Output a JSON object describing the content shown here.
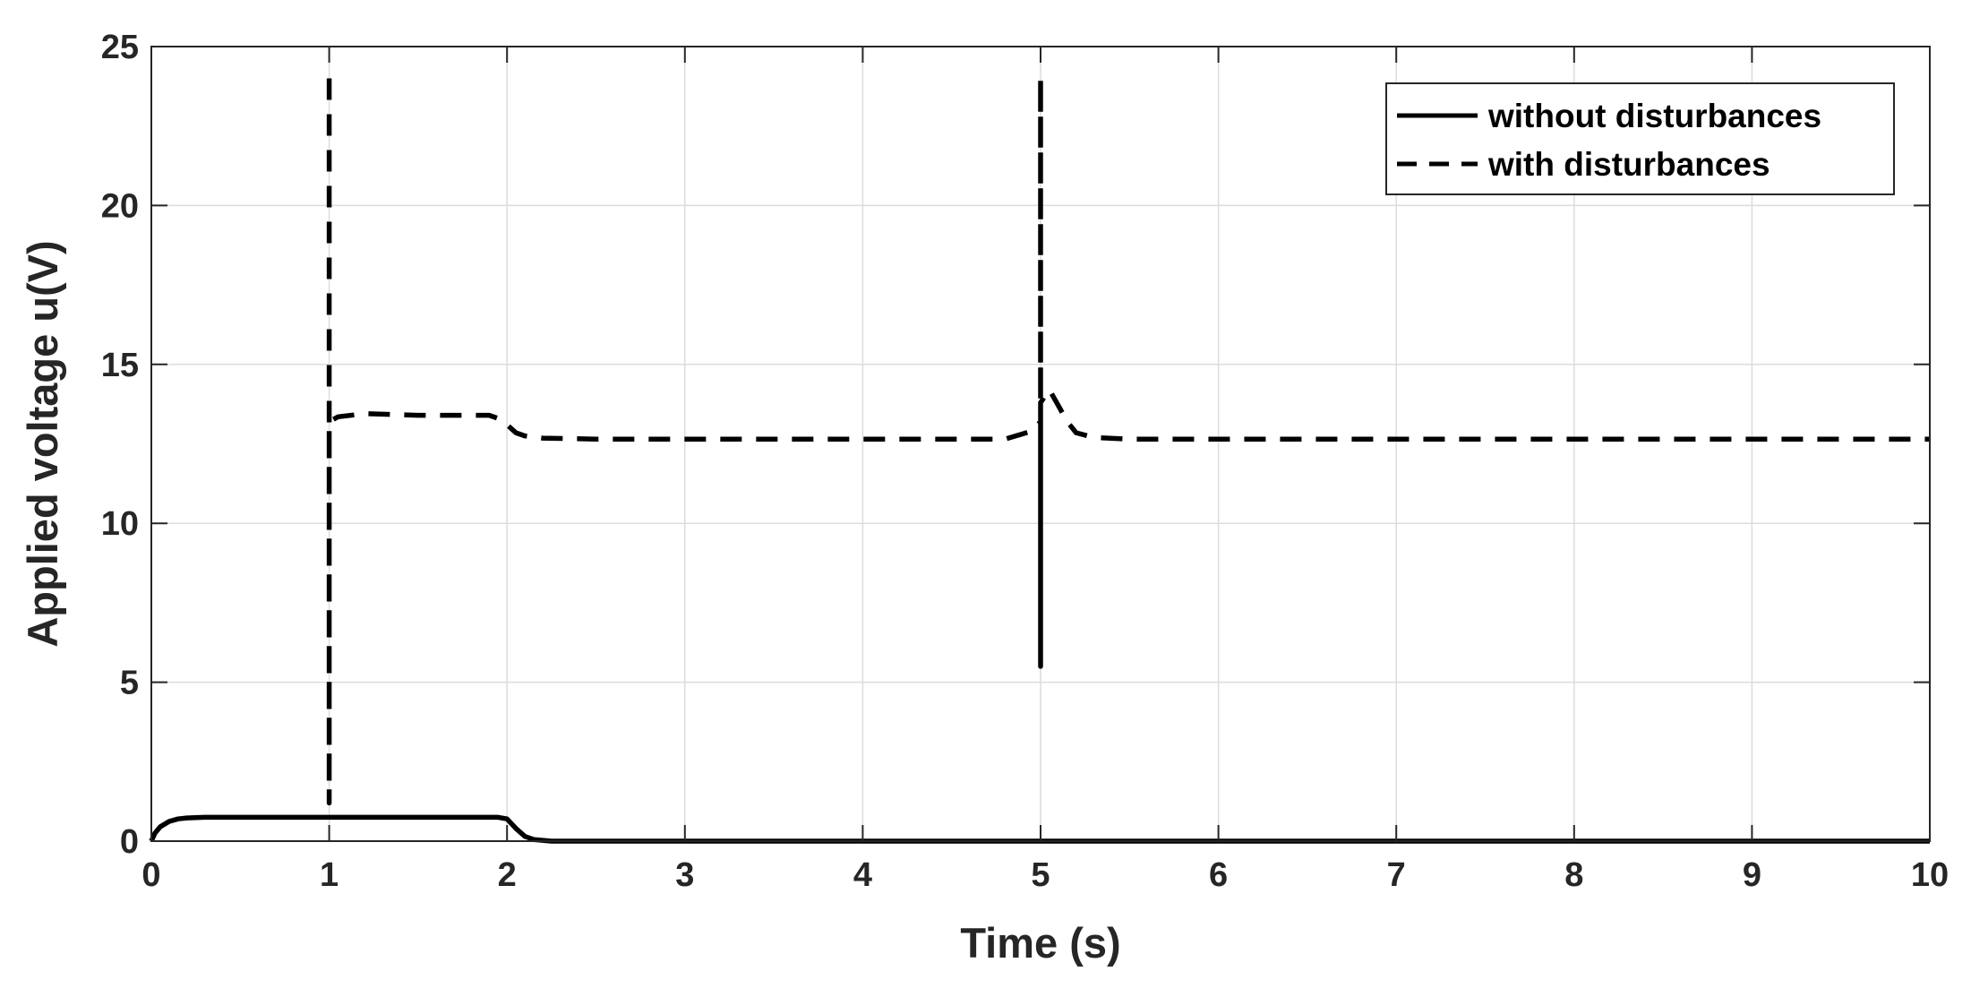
{
  "chart_data": {
    "type": "line",
    "title": "",
    "xlabel": "Time (s)",
    "ylabel": "Applied voltage u(V)",
    "xlim": [
      0,
      10
    ],
    "ylim": [
      0,
      25
    ],
    "xticks": [
      "0",
      "1",
      "2",
      "3",
      "4",
      "5",
      "6",
      "7",
      "8",
      "9",
      "10"
    ],
    "yticks": [
      "0",
      "5",
      "10",
      "15",
      "20",
      "25"
    ],
    "grid": true,
    "legend_position": "top-right",
    "series": [
      {
        "name": "without disturbances",
        "style": "solid",
        "color": "#000000",
        "points": [
          [
            0,
            0.0
          ],
          [
            0.02,
            0.25
          ],
          [
            0.05,
            0.45
          ],
          [
            0.1,
            0.62
          ],
          [
            0.15,
            0.7
          ],
          [
            0.2,
            0.73
          ],
          [
            0.3,
            0.75
          ],
          [
            1.0,
            0.75
          ],
          [
            1.95,
            0.75
          ],
          [
            2.0,
            0.7
          ],
          [
            2.05,
            0.4
          ],
          [
            2.1,
            0.15
          ],
          [
            2.15,
            0.05
          ],
          [
            2.25,
            0.0
          ],
          [
            10,
            0.0
          ]
        ]
      },
      {
        "name": "with disturbances",
        "style": "dashed",
        "color": "#000000",
        "points": [
          [
            1.0,
            24.0
          ],
          [
            1.0,
            1.2
          ],
          [
            1.0,
            9.5
          ],
          [
            1.0,
            13.2
          ],
          [
            1.05,
            13.35
          ],
          [
            1.2,
            13.45
          ],
          [
            1.5,
            13.4
          ],
          [
            1.9,
            13.4
          ],
          [
            1.95,
            13.3
          ],
          [
            2.0,
            13.1
          ],
          [
            2.05,
            12.85
          ],
          [
            2.1,
            12.75
          ],
          [
            2.2,
            12.68
          ],
          [
            2.5,
            12.65
          ],
          [
            4.8,
            12.65
          ],
          [
            4.95,
            12.9
          ],
          [
            5.0,
            13.2
          ],
          [
            5.0,
            24.0
          ],
          [
            5.0,
            5.5
          ],
          [
            5.0,
            13.8
          ],
          [
            5.05,
            14.2
          ],
          [
            5.1,
            13.7
          ],
          [
            5.15,
            13.2
          ],
          [
            5.2,
            12.85
          ],
          [
            5.3,
            12.7
          ],
          [
            5.5,
            12.65
          ],
          [
            10,
            12.65
          ]
        ]
      }
    ]
  }
}
